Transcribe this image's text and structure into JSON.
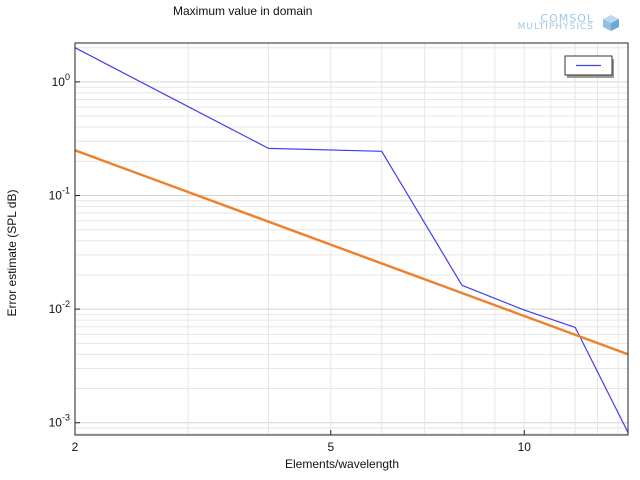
{
  "chart_data": {
    "type": "line",
    "title": "Maximum value in domain",
    "xlabel": "Elements/wavelength",
    "ylabel": "Error estimate (SPL dB)",
    "xscale": "log",
    "yscale": "log",
    "xlim": [
      2,
      14.5
    ],
    "ylim": [
      0.00078,
      2.2
    ],
    "grid": true,
    "legend": "top-right",
    "xticks": [
      {
        "value": 2,
        "label": "2"
      },
      {
        "value": 5,
        "label": "5"
      },
      {
        "value": 10,
        "label": "10"
      }
    ],
    "yticks": [
      {
        "value": 1,
        "base": "10",
        "exp": "0"
      },
      {
        "value": 0.1,
        "base": "10",
        "exp": "-1"
      },
      {
        "value": 0.01,
        "base": "10",
        "exp": "-2"
      },
      {
        "value": 0.001,
        "base": "10",
        "exp": "-3"
      }
    ],
    "series": [
      {
        "color": "#3f3fef",
        "width": 1.2,
        "x": [
          2.0,
          4.0,
          6.0,
          8.0,
          10.0,
          12.0,
          14.5
        ],
        "y": [
          2.0,
          0.26,
          0.245,
          0.0162,
          0.0098,
          0.0069,
          0.00082
        ]
      },
      {
        "color": "#f07f2a",
        "width": 2.4,
        "x": [
          2.0,
          14.5
        ],
        "y": [
          0.25,
          0.004
        ]
      }
    ]
  },
  "legend_entries": [
    {
      "color": "#3f3fef"
    }
  ],
  "logo": {
    "line1": "COMSOL",
    "line2": "MULTIPHYSICS"
  }
}
